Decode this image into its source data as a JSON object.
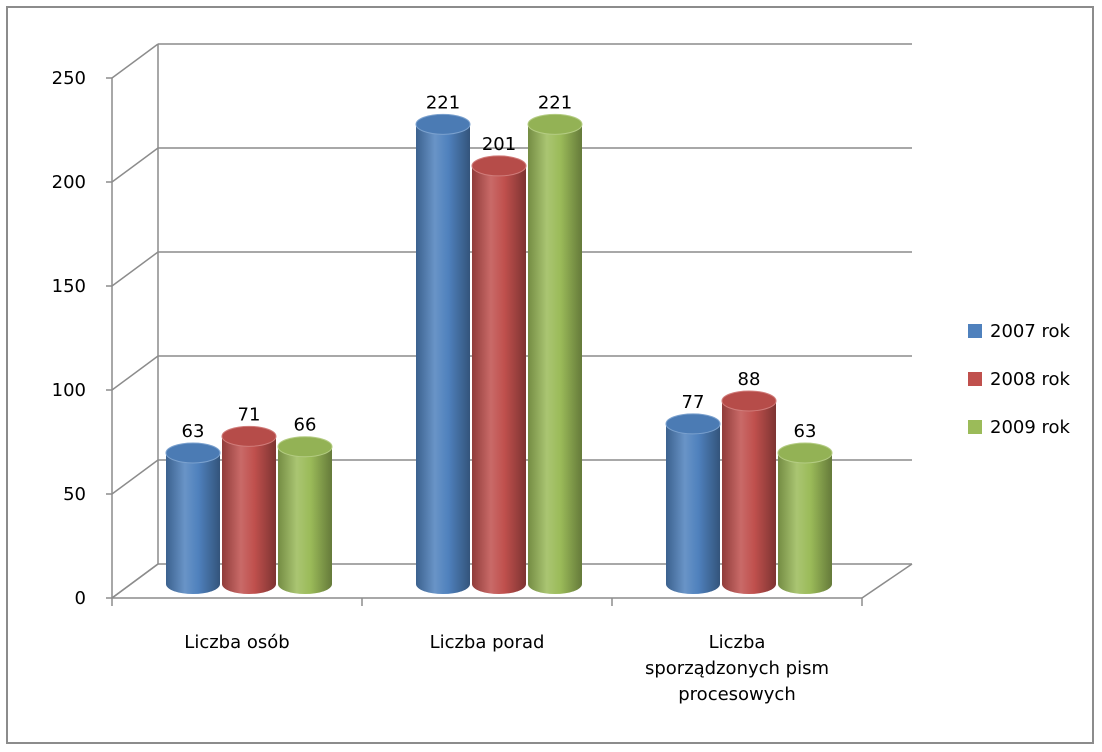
{
  "chart_data": {
    "type": "bar",
    "style": "3d-cylinder",
    "categories": [
      [
        "Liczba osób"
      ],
      [
        "Liczba porad"
      ],
      [
        "Liczba",
        "sporządzonych pism",
        "procesowych"
      ]
    ],
    "series": [
      {
        "name": "2007 rok",
        "values": [
          63,
          221,
          77
        ],
        "color": "#4f81bd"
      },
      {
        "name": "2008 rok",
        "values": [
          71,
          201,
          88
        ],
        "color": "#c0504d"
      },
      {
        "name": "2009 rok",
        "values": [
          66,
          221,
          63
        ],
        "color": "#9bbb59"
      }
    ],
    "ylim": [
      0,
      250
    ],
    "yticks": [
      0,
      50,
      100,
      150,
      200,
      250
    ],
    "grid": true,
    "data_labels": true,
    "legend_position": "right"
  }
}
